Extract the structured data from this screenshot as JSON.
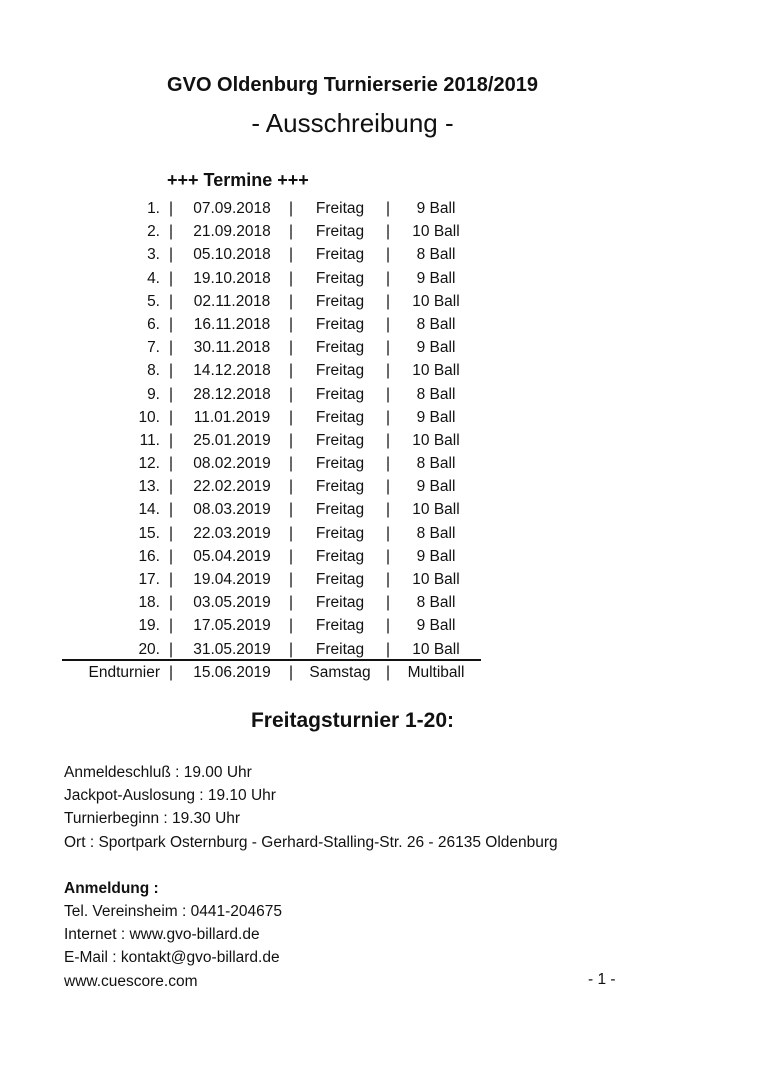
{
  "title": "GVO Oldenburg Turnierserie 2018/2019",
  "subtitle": "- Ausschreibung -",
  "schedule_heading": "+++ Termine +++",
  "separator": "|",
  "schedule": [
    {
      "num": "1.",
      "date": "07.09.2018",
      "day": "Freitag",
      "type": "9 Ball"
    },
    {
      "num": "2.",
      "date": "21.09.2018",
      "day": "Freitag",
      "type": "10 Ball"
    },
    {
      "num": "3.",
      "date": "05.10.2018",
      "day": "Freitag",
      "type": "8 Ball"
    },
    {
      "num": "4.",
      "date": "19.10.2018",
      "day": "Freitag",
      "type": "9 Ball"
    },
    {
      "num": "5.",
      "date": "02.11.2018",
      "day": "Freitag",
      "type": "10 Ball"
    },
    {
      "num": "6.",
      "date": "16.11.2018",
      "day": "Freitag",
      "type": "8 Ball"
    },
    {
      "num": "7.",
      "date": "30.11.2018",
      "day": "Freitag",
      "type": "9 Ball"
    },
    {
      "num": "8.",
      "date": "14.12.2018",
      "day": "Freitag",
      "type": "10 Ball"
    },
    {
      "num": "9.",
      "date": "28.12.2018",
      "day": "Freitag",
      "type": "8 Ball"
    },
    {
      "num": "10.",
      "date": "11.01.2019",
      "day": "Freitag",
      "type": "9 Ball"
    },
    {
      "num": "11.",
      "date": "25.01.2019",
      "day": "Freitag",
      "type": "10 Ball"
    },
    {
      "num": "12.",
      "date": "08.02.2019",
      "day": "Freitag",
      "type": "8 Ball"
    },
    {
      "num": "13.",
      "date": "22.02.2019",
      "day": "Freitag",
      "type": "9 Ball"
    },
    {
      "num": "14.",
      "date": "08.03.2019",
      "day": "Freitag",
      "type": "10 Ball"
    },
    {
      "num": "15.",
      "date": "22.03.2019",
      "day": "Freitag",
      "type": "8 Ball"
    },
    {
      "num": "16.",
      "date": "05.04.2019",
      "day": "Freitag",
      "type": "9 Ball"
    },
    {
      "num": "17.",
      "date": "19.04.2019",
      "day": "Freitag",
      "type": "10 Ball"
    },
    {
      "num": "18.",
      "date": "03.05.2019",
      "day": "Freitag",
      "type": "8 Ball"
    },
    {
      "num": "19.",
      "date": "17.05.2019",
      "day": "Freitag",
      "type": "9 Ball"
    },
    {
      "num": "20.",
      "date": "31.05.2019",
      "day": "Freitag",
      "type": "10 Ball"
    }
  ],
  "final": {
    "num": "Endturnier",
    "date": "15.06.2019",
    "day": "Samstag",
    "type": "Multiball"
  },
  "section_heading": "Freitagsturnier 1-20:",
  "details": [
    "Anmeldeschluß : 19.00 Uhr",
    "Jackpot-Auslosung : 19.10 Uhr",
    "Turnierbeginn : 19.30 Uhr",
    "Ort : Sportpark Osternburg - Gerhard-Stalling-Str. 26 - 26135 Oldenburg"
  ],
  "registration_heading": "Anmeldung :",
  "registration": [
    "Tel. Vereinsheim : 0441-204675",
    "Internet : www.gvo-billard.de",
    "E-Mail : kontakt@gvo-billard.de",
    "www.cuescore.com"
  ],
  "page_number": "- 1 -"
}
